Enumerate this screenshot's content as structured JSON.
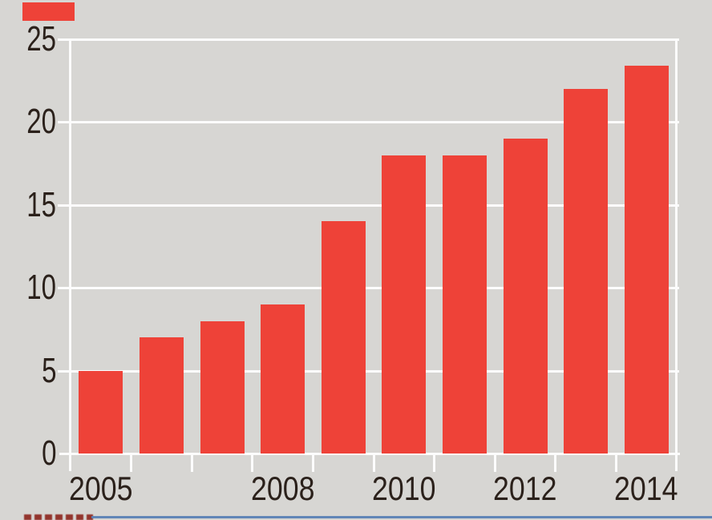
{
  "page": {
    "background_color": "#d7d6d3"
  },
  "chart_data": {
    "type": "bar",
    "title": "",
    "xlabel": "",
    "ylabel": "",
    "categories": [
      "2005",
      "2006",
      "2007",
      "2008",
      "2009",
      "2010",
      "2011",
      "2012",
      "2013",
      "2014"
    ],
    "values": [
      5,
      7,
      8,
      9,
      14,
      18,
      18,
      19,
      22,
      23.4
    ],
    "ylim": [
      0,
      25
    ],
    "y_ticks": [
      0,
      5,
      10,
      15,
      20,
      25
    ],
    "x_shown_tick_labels": [
      {
        "label": "2005",
        "category_index": 0
      },
      {
        "label": "2008",
        "category_index": 3
      },
      {
        "label": "2010",
        "category_index": 5
      },
      {
        "label": "2012",
        "category_index": 7
      },
      {
        "label": "2014",
        "category_index": 9
      }
    ],
    "grid": "horizontal",
    "legend": "none",
    "bar_color": "#ee4238",
    "gridline_color": "#fcfcfc",
    "tick_text_color": "#2b211b"
  },
  "decorations": {
    "top_left_tab_color": "#ee4238",
    "footer_rule_color": "#5b82b5",
    "footer_text_color": "#8c241c"
  }
}
